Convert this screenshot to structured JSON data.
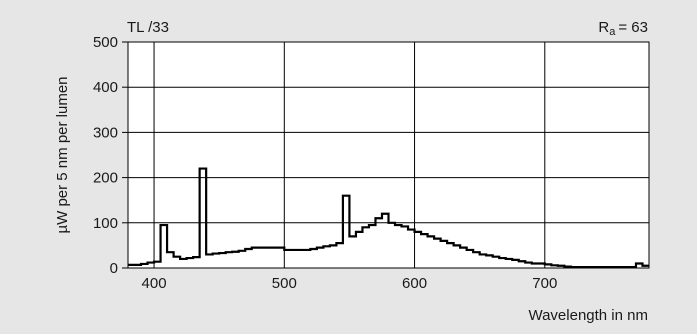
{
  "chart_data": {
    "type": "line",
    "series_label": "TL /33",
    "ra_label": "R",
    "ra_sub": "a",
    "ra_value": "= 63",
    "xlabel": "Wavelength in nm",
    "ylabel": "µW per 5 nm per lumen",
    "xlim": [
      380,
      780
    ],
    "ylim": [
      0,
      500
    ],
    "xticks": [
      400,
      500,
      600,
      700
    ],
    "yticks": [
      0,
      100,
      200,
      300,
      400,
      500
    ],
    "grid": true,
    "colors": {
      "background": "#e6e6e6",
      "plot": "#ffffff",
      "line": "#000000",
      "grid": "#000000"
    },
    "step_width": 5,
    "x": [
      380,
      385,
      390,
      395,
      400,
      405,
      410,
      415,
      420,
      425,
      430,
      435,
      440,
      445,
      450,
      455,
      460,
      465,
      470,
      475,
      480,
      485,
      490,
      495,
      500,
      505,
      510,
      515,
      520,
      525,
      530,
      535,
      540,
      545,
      550,
      555,
      560,
      565,
      570,
      575,
      580,
      585,
      590,
      595,
      600,
      605,
      610,
      615,
      620,
      625,
      630,
      635,
      640,
      645,
      650,
      655,
      660,
      665,
      670,
      675,
      680,
      685,
      690,
      695,
      700,
      705,
      710,
      715,
      720,
      725,
      730,
      735,
      740,
      745,
      750,
      755,
      760,
      765,
      770,
      775
    ],
    "y": [
      7,
      7,
      9,
      12,
      14,
      95,
      35,
      25,
      20,
      22,
      24,
      220,
      30,
      32,
      33,
      35,
      36,
      38,
      42,
      45,
      45,
      45,
      45,
      45,
      40,
      40,
      40,
      40,
      42,
      45,
      48,
      50,
      55,
      160,
      70,
      80,
      90,
      95,
      110,
      120,
      100,
      95,
      92,
      85,
      80,
      75,
      70,
      65,
      60,
      55,
      50,
      45,
      40,
      35,
      30,
      28,
      25,
      22,
      20,
      18,
      15,
      12,
      10,
      10,
      8,
      6,
      5,
      3,
      2,
      2,
      2,
      2,
      2,
      2,
      2,
      2,
      2,
      2,
      10,
      5
    ]
  }
}
